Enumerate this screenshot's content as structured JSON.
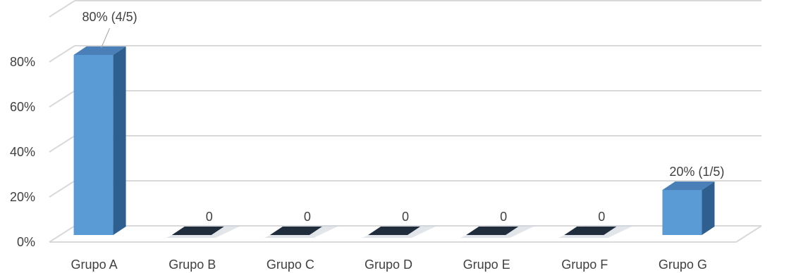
{
  "chart_data": {
    "type": "bar",
    "categories": [
      "Grupo A",
      "Grupo B",
      "Grupo C",
      "Grupo D",
      "Grupo E",
      "Grupo F",
      "Grupo G"
    ],
    "values": [
      80,
      0,
      0,
      0,
      0,
      0,
      20
    ],
    "data_labels": [
      "80% (4/5)",
      "0",
      "0",
      "0",
      "0",
      "0",
      "20% (1/5)"
    ],
    "yticks": [
      "0%",
      "20%",
      "40%",
      "60%",
      "80%"
    ],
    "ytick_values": [
      0,
      20,
      40,
      60,
      80
    ],
    "ylim": [
      0,
      90
    ],
    "title": "",
    "xlabel": "",
    "ylabel": "",
    "grid": true,
    "legend": "none",
    "colors": {
      "bar_front": "#5b9bd5",
      "bar_side": "#2e5f8f",
      "bar_top": "#4a7fb8",
      "zero_slab": "#1f2d3d",
      "grid": "#d9d9d9",
      "text": "#404040"
    }
  }
}
